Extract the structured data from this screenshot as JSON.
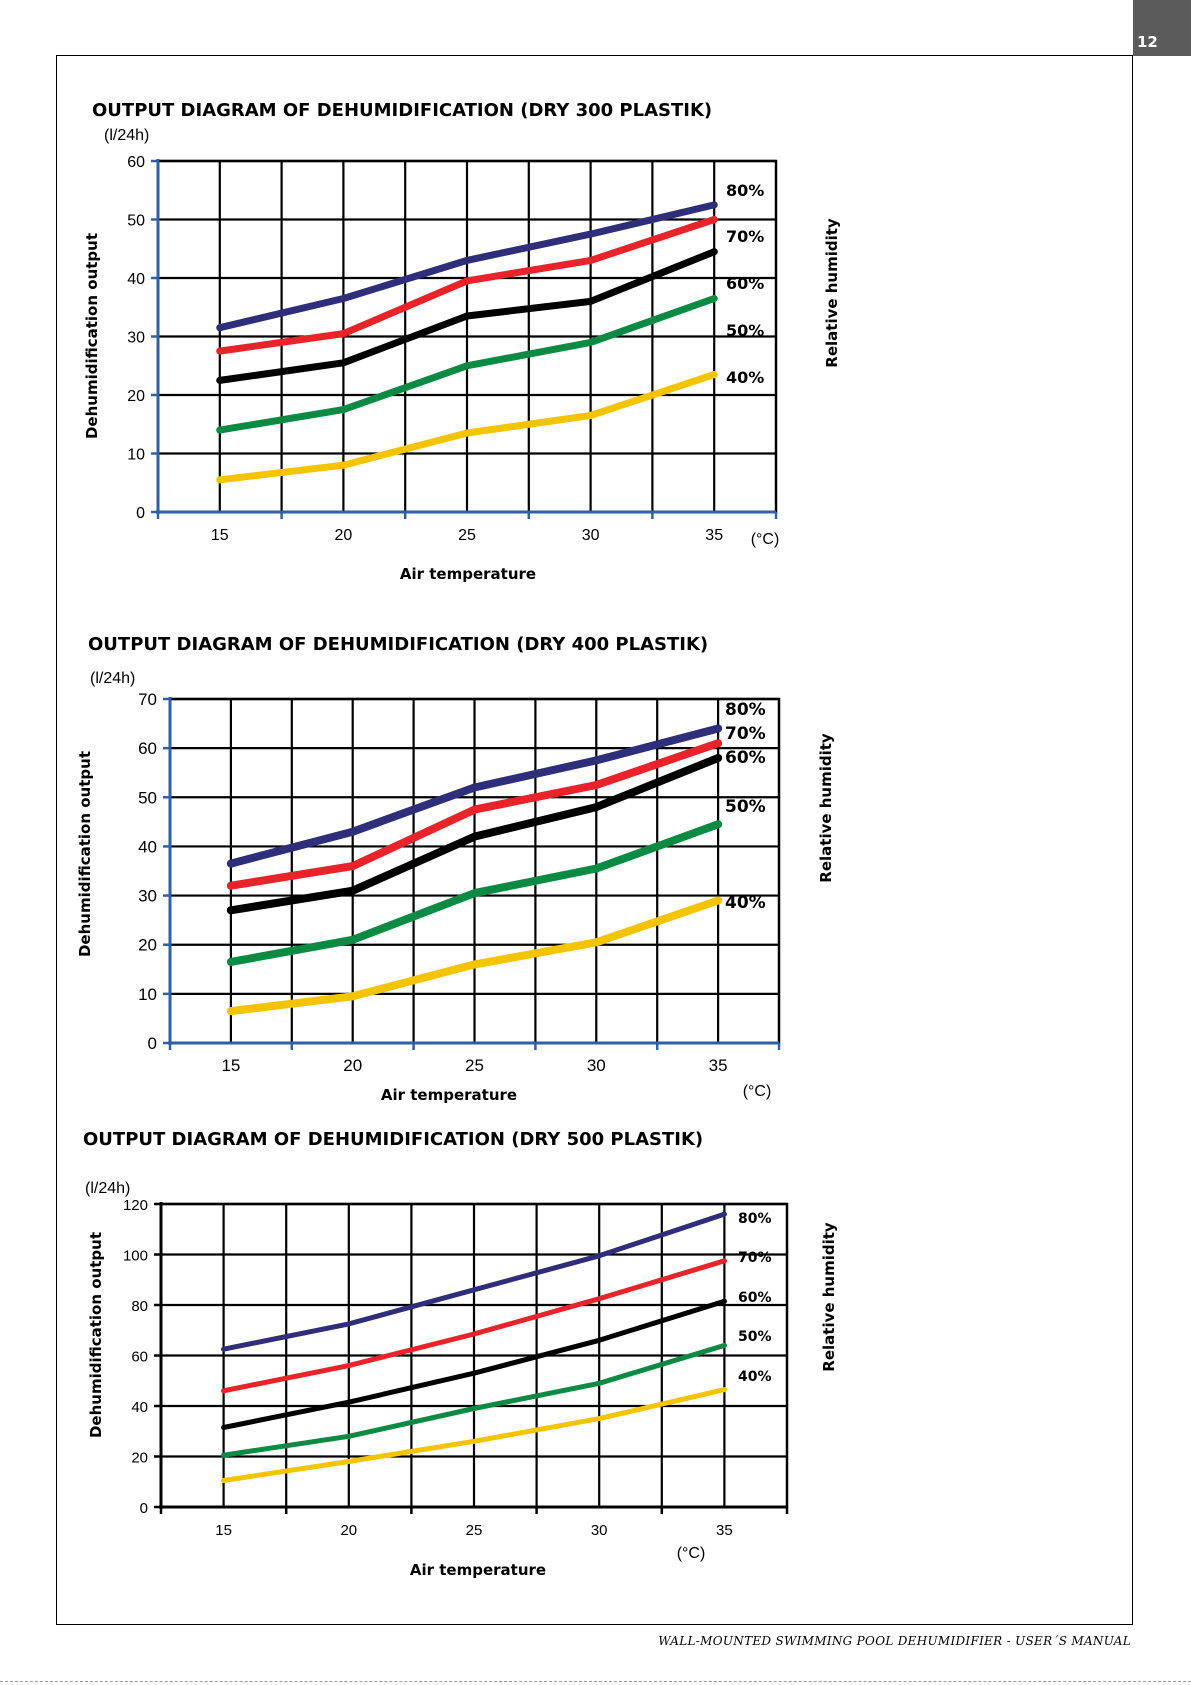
{
  "page_number": "12",
  "footer": "WALL-MOUNTED SWIMMING POOL DEHUMIDIFIER - USER´S MANUAL",
  "colors": {
    "80%": "#2e2e7a",
    "70%": "#e8232a",
    "60%": "#000000",
    "50%": "#0a8a43",
    "40%": "#f5c400"
  },
  "chart_data": [
    {
      "type": "line",
      "title": "OUTPUT DIAGRAM OF DEHUMIDIFICATION (DRY 300 PLASTIK)",
      "xlabel": "Air temperature",
      "ylabel": "Dehumidification output",
      "y_unit": "(l/24h)",
      "x_unit": "(°C)",
      "legend_title": "Relative humidity",
      "x": [
        15,
        20,
        25,
        30,
        35
      ],
      "xlim": [
        12.5,
        37.5
      ],
      "ylim": [
        0,
        60
      ],
      "yticks": [
        0,
        10,
        20,
        30,
        40,
        50,
        60
      ],
      "grid": true,
      "series": [
        {
          "name": "80%",
          "values": [
            31.5,
            36.5,
            43.0,
            47.5,
            52.5
          ]
        },
        {
          "name": "70%",
          "values": [
            27.5,
            30.5,
            39.5,
            43.0,
            50.0
          ]
        },
        {
          "name": "60%",
          "values": [
            22.5,
            25.5,
            33.5,
            36.0,
            44.5
          ]
        },
        {
          "name": "50%",
          "values": [
            14.0,
            17.5,
            25.0,
            29.0,
            36.5
          ]
        },
        {
          "name": "40%",
          "values": [
            5.5,
            8.0,
            13.5,
            16.5,
            23.5
          ]
        }
      ]
    },
    {
      "type": "line",
      "title": "OUTPUT DIAGRAM OF DEHUMIDIFICATION (DRY 400 PLASTIK)",
      "xlabel": "Air temperature",
      "ylabel": "Dehumidification output",
      "y_unit": "(l/24h)",
      "x_unit": "(°C)",
      "legend_title": "Relative humidity",
      "x": [
        15,
        20,
        25,
        30,
        35
      ],
      "xlim": [
        12.5,
        37.5
      ],
      "ylim": [
        0,
        70
      ],
      "yticks": [
        0,
        10,
        20,
        30,
        40,
        50,
        60,
        70
      ],
      "grid": true,
      "series": [
        {
          "name": "80%",
          "values": [
            36.5,
            43.0,
            52.0,
            57.5,
            64.0
          ]
        },
        {
          "name": "70%",
          "values": [
            32.0,
            36.0,
            47.5,
            52.5,
            61.0
          ]
        },
        {
          "name": "60%",
          "values": [
            27.0,
            31.0,
            42.0,
            48.0,
            58.0
          ]
        },
        {
          "name": "50%",
          "values": [
            16.5,
            21.0,
            30.5,
            35.5,
            44.5
          ]
        },
        {
          "name": "40%",
          "values": [
            6.5,
            9.5,
            16.0,
            20.5,
            29.0
          ]
        }
      ]
    },
    {
      "type": "line",
      "title": "OUTPUT DIAGRAM OF DEHUMIDIFICATION (DRY 500 PLASTIK)",
      "xlabel": "Air temperature",
      "ylabel": "Dehumidification output",
      "y_unit": "(l/24h)",
      "x_unit": "(°C)",
      "legend_title": "Relative humidity",
      "x": [
        15,
        20,
        25,
        30,
        35
      ],
      "xlim": [
        12.5,
        37.5
      ],
      "ylim": [
        0,
        120
      ],
      "yticks": [
        0,
        20,
        40,
        60,
        80,
        100,
        120
      ],
      "grid": true,
      "series": [
        {
          "name": "80%",
          "values": [
            62.5,
            72.5,
            86.0,
            99.5,
            116.0
          ]
        },
        {
          "name": "70%",
          "values": [
            46.0,
            56.0,
            68.5,
            82.5,
            97.5
          ]
        },
        {
          "name": "60%",
          "values": [
            31.5,
            41.5,
            53.0,
            66.0,
            81.5
          ]
        },
        {
          "name": "50%",
          "values": [
            20.5,
            28.0,
            39.0,
            49.0,
            64.0
          ]
        },
        {
          "name": "40%",
          "values": [
            10.5,
            18.0,
            26.0,
            35.0,
            46.5
          ]
        }
      ]
    }
  ]
}
